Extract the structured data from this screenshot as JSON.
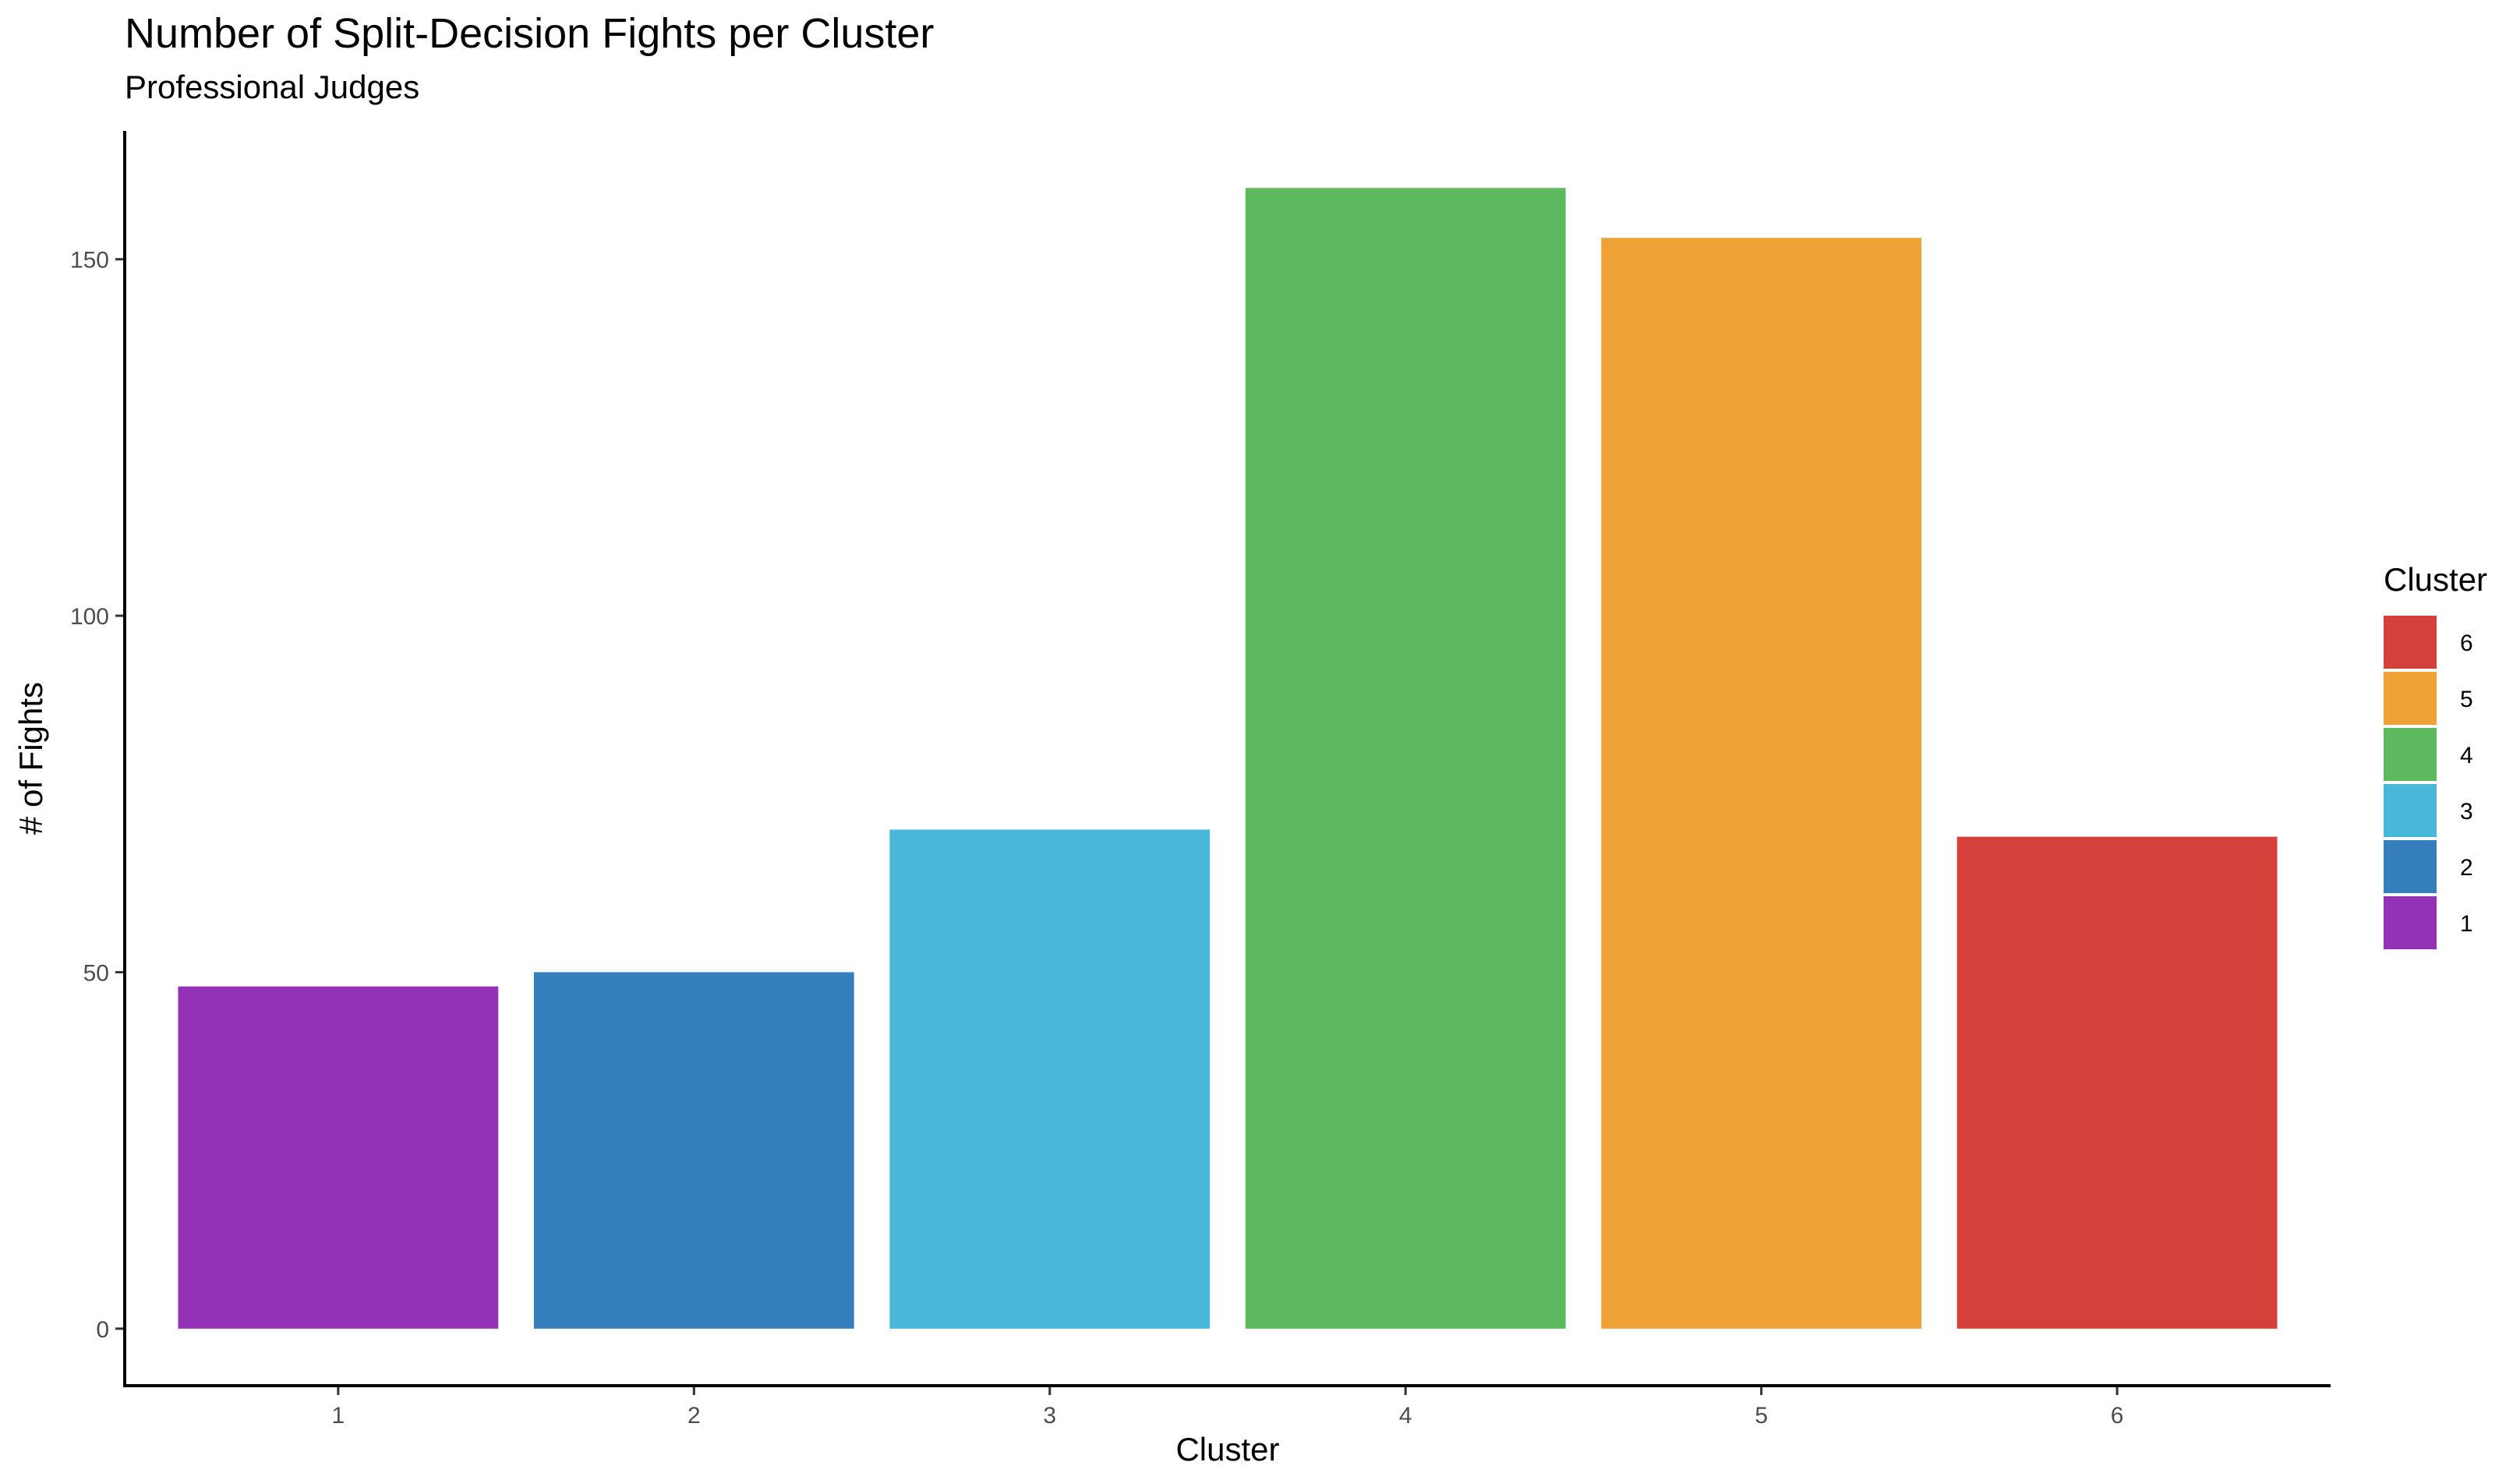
{
  "chart_data": {
    "type": "bar",
    "title": "Number of Split-Decision Fights per Cluster",
    "subtitle": "Professional Judges",
    "xlabel": "Cluster",
    "ylabel": "# of Fights",
    "categories": [
      "1",
      "2",
      "3",
      "4",
      "5",
      "6"
    ],
    "values": [
      48,
      50,
      70,
      160,
      153,
      69
    ],
    "colors": [
      "#9331B7",
      "#357FBD",
      "#47B8DA",
      "#5DB95D",
      "#EEA236",
      "#D6403B"
    ],
    "ylim": [
      -8,
      168
    ],
    "yticks": [
      0,
      50,
      100,
      150
    ],
    "grid": false,
    "legend": {
      "title": "Cluster",
      "position": "right",
      "entries": [
        {
          "label": "6",
          "color": "#D6403B"
        },
        {
          "label": "5",
          "color": "#EEA236"
        },
        {
          "label": "4",
          "color": "#5DB95D"
        },
        {
          "label": "3",
          "color": "#47B8DA"
        },
        {
          "label": "2",
          "color": "#357FBD"
        },
        {
          "label": "1",
          "color": "#9331B7"
        }
      ]
    }
  }
}
